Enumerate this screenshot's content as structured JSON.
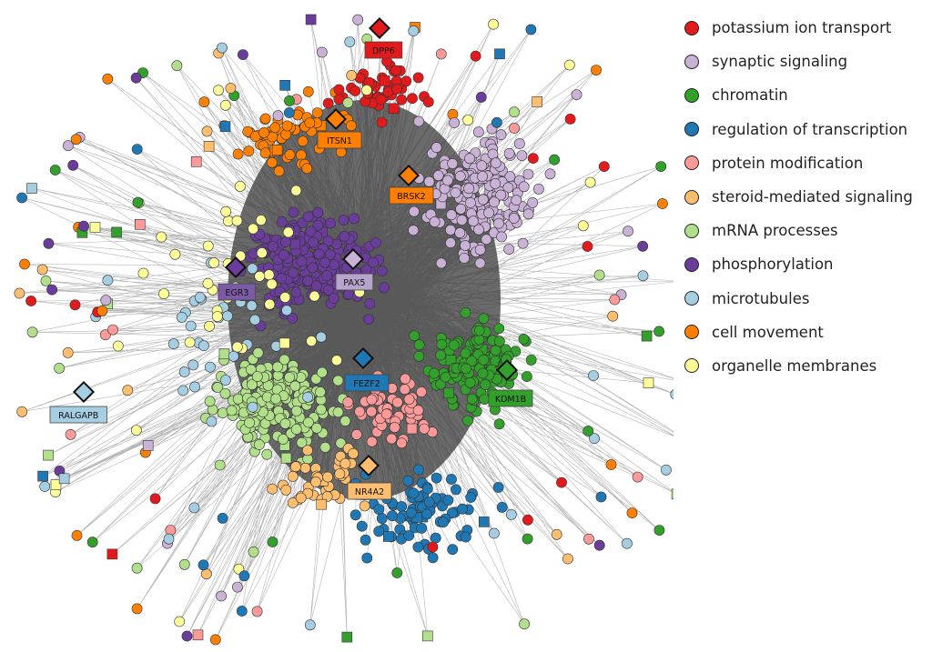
{
  "legend": [
    {
      "key": "potassium",
      "label": "potassium ion transport",
      "color": "#e31a1c"
    },
    {
      "key": "synaptic",
      "label": "synaptic signaling",
      "color": "#cab2d6"
    },
    {
      "key": "chromatin",
      "label": "chromatin",
      "color": "#33a02c"
    },
    {
      "key": "transcription",
      "label": "regulation of transcription",
      "color": "#1f78b4"
    },
    {
      "key": "protein",
      "label": "protein modification",
      "color": "#fb9a99"
    },
    {
      "key": "steroid",
      "label": "steroid-mediated signaling",
      "color": "#fdbf6f"
    },
    {
      "key": "mrna",
      "label": "mRNA processes",
      "color": "#b2df8a"
    },
    {
      "key": "phospho",
      "label": "phosphorylation",
      "color": "#6a3d9a"
    },
    {
      "key": "microtubules",
      "label": "microtubules",
      "color": "#a6cee3"
    },
    {
      "key": "movement",
      "label": "cell movement",
      "color": "#ff7f00"
    },
    {
      "key": "organelle",
      "label": "organelle membranes",
      "color": "#ffff99"
    }
  ],
  "hub_genes": [
    {
      "name": "DPP6",
      "module": "potassium",
      "label_color": "#e31a1c"
    },
    {
      "name": "ITSN1",
      "module": "movement",
      "label_color": "#ff7f00"
    },
    {
      "name": "BRSK2",
      "module": "movement",
      "label_color": "#ff7f00"
    },
    {
      "name": "EGR3",
      "module": "phospho",
      "label_color": "#7b5aa6"
    },
    {
      "name": "PAX5",
      "module": "synaptic",
      "label_color": "#b7a3cc"
    },
    {
      "name": "FEZF2",
      "module": "transcription",
      "label_color": "#1f78b4"
    },
    {
      "name": "KDM1B",
      "module": "chromatin",
      "label_color": "#33a02c"
    },
    {
      "name": "RALGAPB",
      "module": "microtubules",
      "label_color": "#a6cee3"
    },
    {
      "name": "NR4A2",
      "module": "steroid",
      "label_color": "#fdbf6f"
    }
  ]
}
